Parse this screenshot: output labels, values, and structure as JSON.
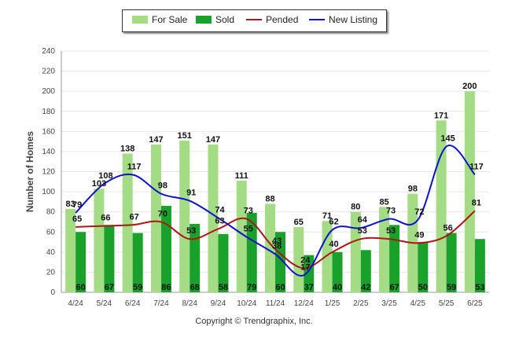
{
  "chart_data": {
    "type": "bar",
    "categories": [
      "4/24",
      "5/24",
      "6/24",
      "7/24",
      "8/24",
      "9/24",
      "10/24",
      "11/24",
      "12/24",
      "1/25",
      "2/25",
      "3/25",
      "4/25",
      "5/25",
      "6/25"
    ],
    "ylabel": "Number of Homes",
    "xlabel": "",
    "ylim": [
      0,
      240
    ],
    "yticks": [
      0,
      20,
      40,
      60,
      80,
      100,
      120,
      140,
      160,
      180,
      200,
      220,
      240
    ],
    "grid": true,
    "legend": "top-center",
    "series": [
      {
        "name": "For Sale",
        "kind": "bar",
        "color": "#a3dc85",
        "values": [
          83,
          103,
          138,
          147,
          151,
          147,
          111,
          88,
          65,
          71,
          80,
          85,
          98,
          171,
          200
        ]
      },
      {
        "name": "Sold",
        "kind": "bar",
        "color": "#1aa12c",
        "values": [
          60,
          67,
          59,
          86,
          68,
          58,
          79,
          60,
          37,
          40,
          42,
          67,
          50,
          59,
          53
        ]
      },
      {
        "name": "Pended",
        "kind": "line",
        "color": "#b01515",
        "values": [
          65,
          66,
          67,
          70,
          53,
          63,
          73,
          43,
          24,
          40,
          53,
          53,
          49,
          56,
          81
        ]
      },
      {
        "name": "New Listing",
        "kind": "line",
        "color": "#1010d0",
        "values": [
          79,
          108,
          117,
          98,
          91,
          74,
          55,
          38,
          17,
          62,
          64,
          73,
          72,
          145,
          117
        ]
      }
    ]
  },
  "footer": {
    "copyright": "Copyright © Trendgraphix, Inc."
  }
}
